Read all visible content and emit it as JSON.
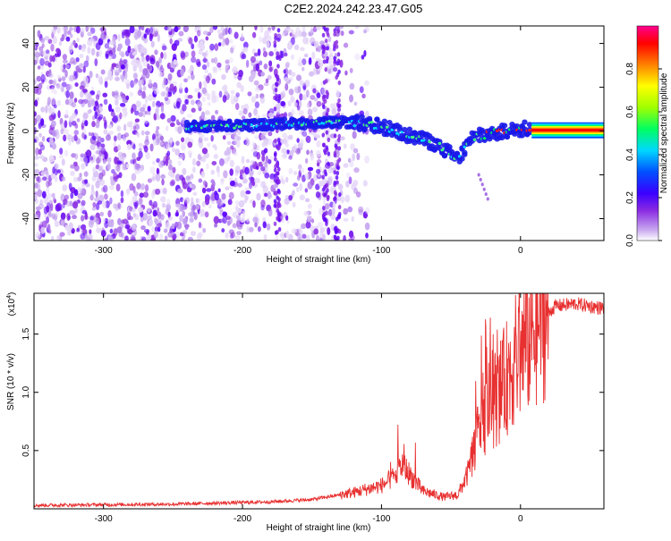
{
  "title": "C2E2.2024.242.23.47.G05",
  "chart_data": [
    {
      "type": "heatmap",
      "xlabel": "Height of straight line (km)",
      "ylabel": "Frequency (Hz)",
      "xlim": [
        -350,
        60
      ],
      "ylim": [
        -50,
        48
      ],
      "x_ticks": [
        -300,
        -200,
        -100,
        0
      ],
      "y_ticks": [
        -40,
        -20,
        0,
        20,
        40
      ],
      "colorbar": {
        "label": "Normalized spectral amplitude",
        "range": [
          0,
          1
        ],
        "ticks": [
          0.0,
          0.2,
          0.4,
          0.6,
          0.8
        ],
        "colormap": [
          "#ffffff",
          "#c8a8f0",
          "#8a2be2",
          "#3b00ff",
          "#0050ff",
          "#00d8ff",
          "#00ff60",
          "#a0ff00",
          "#ffff00",
          "#ff8000",
          "#ff0000",
          "#ff0090"
        ]
      },
      "ridge": [
        {
          "x": -240,
          "y": 2
        },
        {
          "x": -200,
          "y": 2.5
        },
        {
          "x": -160,
          "y": 3.5
        },
        {
          "x": -120,
          "y": 4
        },
        {
          "x": -100,
          "y": 2
        },
        {
          "x": -80,
          "y": -2
        },
        {
          "x": -60,
          "y": -6
        },
        {
          "x": -45,
          "y": -13
        },
        {
          "x": -35,
          "y": -3
        },
        {
          "x": -20,
          "y": -1
        },
        {
          "x": 0,
          "y": 1
        },
        {
          "x": 10,
          "y": 2
        },
        {
          "x": 60,
          "y": 2
        }
      ]
    },
    {
      "type": "line",
      "xlabel": "Height of straight line (km)",
      "ylabel": "SNR (10 * v/v)",
      "y_multiplier": "(x10",
      "y_multiplier_exp": "4",
      "y_multiplier_close": ")",
      "xlim": [
        -350,
        60
      ],
      "ylim": [
        0,
        1.85
      ],
      "x_ticks": [
        -300,
        -200,
        -100,
        0
      ],
      "y_ticks": [
        0.5,
        1.0,
        1.5
      ],
      "y_tick_labels": [
        "0.5",
        "1.0",
        "1.5"
      ],
      "line_color": "#e83030",
      "envelope": [
        {
          "x": -350,
          "y": 0.03
        },
        {
          "x": -250,
          "y": 0.04
        },
        {
          "x": -180,
          "y": 0.06
        },
        {
          "x": -150,
          "y": 0.08
        },
        {
          "x": -120,
          "y": 0.14
        },
        {
          "x": -100,
          "y": 0.2
        },
        {
          "x": -90,
          "y": 0.28
        },
        {
          "x": -85,
          "y": 0.38
        },
        {
          "x": -80,
          "y": 0.3
        },
        {
          "x": -70,
          "y": 0.15
        },
        {
          "x": -55,
          "y": 0.1
        },
        {
          "x": -45,
          "y": 0.12
        },
        {
          "x": -38,
          "y": 0.3
        },
        {
          "x": -32,
          "y": 0.6
        },
        {
          "x": -25,
          "y": 0.85
        },
        {
          "x": -15,
          "y": 1.0
        },
        {
          "x": -5,
          "y": 1.25
        },
        {
          "x": 5,
          "y": 1.45
        },
        {
          "x": 15,
          "y": 1.62
        },
        {
          "x": 25,
          "y": 1.74
        },
        {
          "x": 40,
          "y": 1.76
        },
        {
          "x": 60,
          "y": 1.72
        }
      ]
    }
  ]
}
